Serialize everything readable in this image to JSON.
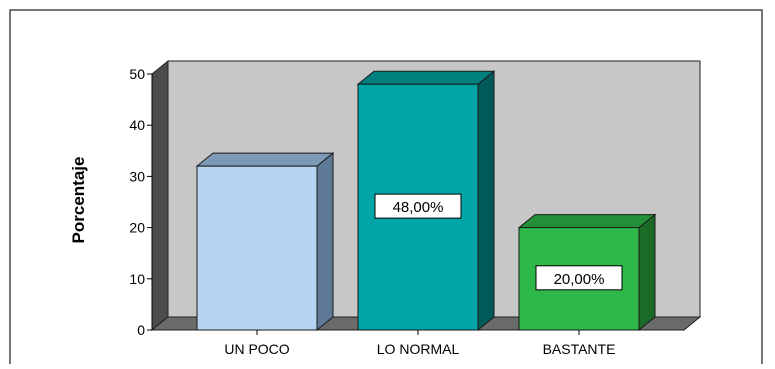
{
  "chart_data": {
    "type": "bar",
    "style": "3d",
    "categories": [
      "UN POCO",
      "LO NORMAL",
      "BASTANTE"
    ],
    "values": [
      32,
      48,
      20
    ],
    "data_labels": [
      "",
      "48,00%",
      "20,00%"
    ],
    "ylabel": "Porcentaje",
    "ylim": [
      0,
      50
    ],
    "yticks": [
      0,
      10,
      20,
      30,
      40,
      50
    ],
    "grid": false,
    "legend": "none",
    "colors": {
      "bars": [
        {
          "front": "#b7d5f0",
          "side": "#5f7a97",
          "top": "#7c99b6"
        },
        {
          "front": "#00a6a6",
          "side": "#005a5a",
          "top": "#007f7f"
        },
        {
          "front": "#2fb84a",
          "side": "#1b6a28",
          "top": "#238f36"
        }
      ],
      "wall": "#c7c7c7",
      "wall_side": "#4c4c4c",
      "floor": "#6b6b6b",
      "background": "#ffffff",
      "border": "#1a1a1a"
    }
  }
}
